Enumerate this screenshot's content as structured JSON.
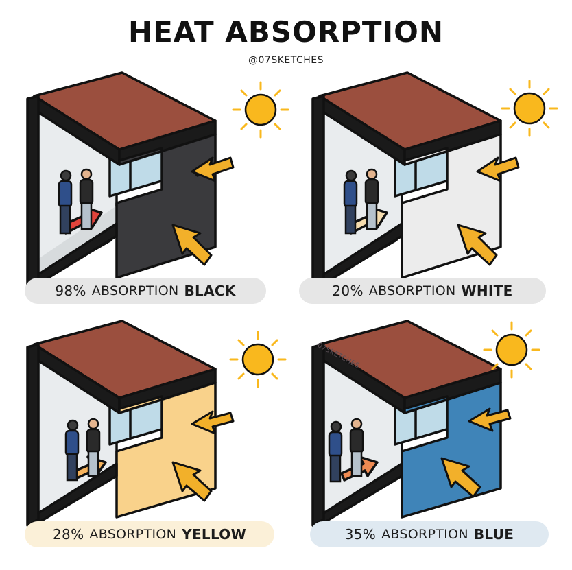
{
  "header": {
    "title": "HEAT ABSORPTION",
    "credit": "@07SKETCHES"
  },
  "watermark": "07SKETCHES",
  "panels": [
    {
      "percent": "98%",
      "word": "ABSORPTION",
      "color_name": "BLACK",
      "wall_color": "#3a3a3d",
      "label_bg": "#e6e6e6",
      "inner_arrow_color": "#e0443c"
    },
    {
      "percent": "20%",
      "word": "ABSORPTION",
      "color_name": "WHITE",
      "wall_color": "#ececec",
      "label_bg": "#e6e6e6",
      "inner_arrow_color": "#f5dcae"
    },
    {
      "percent": "28%",
      "word": "ABSORPTION",
      "color_name": "YELLOW",
      "wall_color": "#f9d28b",
      "label_bg": "#fbf0d8",
      "inner_arrow_color": "#f6b35c"
    },
    {
      "percent": "35%",
      "word": "ABSORPTION",
      "color_name": "BLUE",
      "wall_color": "#3f84b8",
      "label_bg": "#dfe9f1",
      "inner_arrow_color": "#ee8a52"
    }
  ],
  "colors": {
    "roof": "#9b4f3e",
    "interior_wall": "#e9ecee",
    "window": "#bfdbe8",
    "sun": "#f9b81e",
    "arrow": "#f2b02a",
    "outline": "#111111"
  }
}
